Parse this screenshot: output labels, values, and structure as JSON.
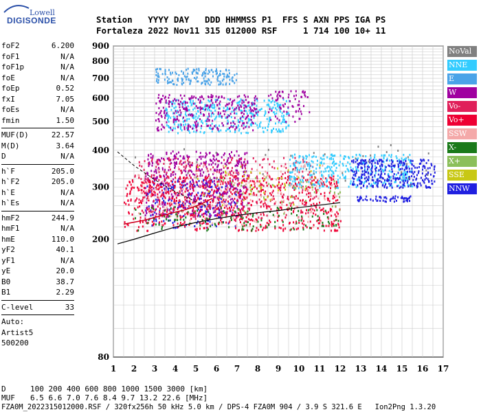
{
  "logo": {
    "brand": "Lowell",
    "product": "DIGISONDE"
  },
  "header": {
    "row1": "Station   YYYY DAY   DDD HHMMSS P1  FFS S AXN PPS IGA PS",
    "row2": "Fortaleza 2022 Nov11 315 012000 RSF     1 714 100 10+ 11"
  },
  "params": {
    "group1": [
      {
        "name": "foF2",
        "value": "6.200"
      },
      {
        "name": "foF1",
        "value": "N/A"
      },
      {
        "name": "foF1p",
        "value": "N/A"
      },
      {
        "name": "foE",
        "value": "N/A"
      },
      {
        "name": "foEp",
        "value": "0.52"
      },
      {
        "name": "fxI",
        "value": "7.05"
      },
      {
        "name": "foEs",
        "value": "N/A"
      },
      {
        "name": "fmin",
        "value": "1.50"
      }
    ],
    "group2": [
      {
        "name": "MUF(D)",
        "value": "22.57"
      },
      {
        "name": "M(D)",
        "value": "3.64"
      },
      {
        "name": "D",
        "value": "N/A"
      }
    ],
    "group3": [
      {
        "name": "h`F",
        "value": "205.0"
      },
      {
        "name": "h`F2",
        "value": "205.0"
      },
      {
        "name": "h`E",
        "value": "N/A"
      },
      {
        "name": "h`Es",
        "value": "N/A"
      }
    ],
    "group4": [
      {
        "name": "hmF2",
        "value": "244.9"
      },
      {
        "name": "hmF1",
        "value": "N/A"
      },
      {
        "name": "hmE",
        "value": "110.0"
      },
      {
        "name": "yF2",
        "value": "40.1"
      },
      {
        "name": "yF1",
        "value": "N/A"
      },
      {
        "name": "yE",
        "value": "20.0"
      },
      {
        "name": "B0",
        "value": "38.7"
      },
      {
        "name": "B1",
        "value": "2.29"
      }
    ],
    "clevel": {
      "name": "C-level",
      "value": "33"
    },
    "auto": [
      "Auto:",
      "Artist5",
      "500200"
    ]
  },
  "legend": [
    {
      "label": "NoVal",
      "color": "#808080"
    },
    {
      "label": "NNE",
      "color": "#33ccff"
    },
    {
      "label": "E",
      "color": "#4aa3e8"
    },
    {
      "label": "W",
      "color": "#a000a0"
    },
    {
      "label": "Vo-",
      "color": "#e0205a"
    },
    {
      "label": "Vo+",
      "color": "#ee0033"
    },
    {
      "label": "SSW",
      "color": "#f4a9a9"
    },
    {
      "label": "X-",
      "color": "#1a7a1a"
    },
    {
      "label": "X+",
      "color": "#8bbf5a"
    },
    {
      "label": "SSE",
      "color": "#c8c814"
    },
    {
      "label": "NNW",
      "color": "#2020e0"
    }
  ],
  "chart_data": {
    "type": "scatter",
    "xlim": [
      1,
      17
    ],
    "ylim": [
      80,
      900
    ],
    "x_ticks": [
      "1",
      "2",
      "3",
      "4",
      "5",
      "6",
      "7",
      "8",
      "9",
      "10",
      "11",
      "12",
      "13",
      "14",
      "15",
      "16",
      "17"
    ],
    "y_ticks": [
      "80",
      "200",
      "300",
      "400",
      "500",
      "600",
      "700",
      "800",
      "900"
    ],
    "y_tick_values": [
      80,
      200,
      300,
      400,
      500,
      600,
      700,
      800,
      900
    ],
    "y_scale": "log",
    "grid": true,
    "profile_curve": [
      [
        1.2,
        193
      ],
      [
        2,
        200
      ],
      [
        3,
        210
      ],
      [
        4,
        220
      ],
      [
        5,
        228
      ],
      [
        6,
        235
      ],
      [
        7,
        241
      ],
      [
        8,
        246
      ],
      [
        9,
        250
      ],
      [
        10,
        256
      ],
      [
        11,
        261
      ],
      [
        12,
        266
      ]
    ],
    "dashed_curve": [
      [
        1.2,
        395
      ],
      [
        2,
        355
      ],
      [
        3,
        318
      ],
      [
        4,
        290
      ],
      [
        5,
        268
      ],
      [
        5.6,
        258
      ]
    ],
    "red_trace": [
      [
        1.5,
        225
      ],
      [
        2.5,
        232
      ],
      [
        3.5,
        242
      ],
      [
        4.5,
        252
      ],
      [
        5.2,
        262
      ],
      [
        5.8,
        275
      ]
    ],
    "echo_regions": [
      {
        "color": "#2020e0",
        "x": [
          2.5,
          7
        ],
        "y": [
          220,
          320
        ],
        "n": 220
      },
      {
        "color": "#a000a0",
        "x": [
          2.5,
          7.5
        ],
        "y": [
          240,
          400
        ],
        "n": 520
      },
      {
        "color": "#ee0033",
        "x": [
          1.5,
          12
        ],
        "y": [
          215,
          330
        ],
        "n": 700
      },
      {
        "color": "#e0205a",
        "x": [
          2,
          11
        ],
        "y": [
          230,
          380
        ],
        "n": 350
      },
      {
        "color": "#33ccff",
        "x": [
          3.5,
          9.5
        ],
        "y": [
          460,
          600
        ],
        "n": 380
      },
      {
        "color": "#a000a0",
        "x": [
          3,
          8
        ],
        "y": [
          470,
          620
        ],
        "n": 300
      },
      {
        "color": "#4aa3e8",
        "x": [
          3,
          7
        ],
        "y": [
          670,
          760
        ],
        "n": 160
      },
      {
        "color": "#33ccff",
        "x": [
          9.5,
          15.5
        ],
        "y": [
          300,
          390
        ],
        "n": 360
      },
      {
        "color": "#2020e0",
        "x": [
          12.5,
          16.6
        ],
        "y": [
          300,
          375
        ],
        "n": 320
      },
      {
        "color": "#2020e0",
        "x": [
          12.8,
          15.5
        ],
        "y": [
          270,
          282
        ],
        "n": 60
      },
      {
        "color": "#f4a9a9",
        "x": [
          2,
          12
        ],
        "y": [
          220,
          360
        ],
        "n": 180
      },
      {
        "color": "#1a7a1a",
        "x": [
          2,
          12
        ],
        "y": [
          215,
          260
        ],
        "n": 120
      },
      {
        "color": "#c8c814",
        "x": [
          5,
          11
        ],
        "y": [
          260,
          360
        ],
        "n": 50
      },
      {
        "color": "#8bbf5a",
        "x": [
          6,
          12
        ],
        "y": [
          240,
          330
        ],
        "n": 50
      },
      {
        "color": "#a000a0",
        "x": [
          8.5,
          10.5
        ],
        "y": [
          500,
          640
        ],
        "n": 70
      },
      {
        "color": "#808080",
        "x": [
          1.2,
          16.5
        ],
        "y": [
          300,
          420
        ],
        "n": 40
      }
    ],
    "d_table": {
      "labels": [
        "D",
        "MUF"
      ],
      "d_values": [
        "100",
        "200",
        "400",
        "600",
        "800",
        "1000",
        "1500",
        "3000",
        "[km]"
      ],
      "muf_values": [
        "6.5",
        "6.6",
        "7.0",
        "7.6",
        "8.4",
        "9.7",
        "13.2",
        "22.6",
        "[MHz]"
      ]
    }
  },
  "footer": "FZA0M_2022315012000.RSF / 320fx256h 50 kHz 5.0 km / DPS-4 FZA0M 904 / 3.9 S 321.6 E   Ion2Png 1.3.20"
}
